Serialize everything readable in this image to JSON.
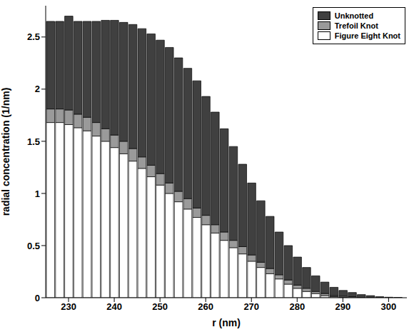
{
  "chart_data": {
    "type": "bar",
    "stacked": true,
    "legend": "upper right",
    "xlabel": "r (nm)",
    "ylabel": "radial concentration (1/nm)",
    "x": [
      226,
      228,
      230,
      232,
      234,
      236,
      238,
      240,
      242,
      244,
      246,
      248,
      250,
      252,
      254,
      256,
      258,
      260,
      262,
      264,
      266,
      268,
      270,
      272,
      274,
      276,
      278,
      280,
      282,
      284,
      286,
      288,
      290,
      292,
      294,
      296,
      298,
      300,
      302
    ],
    "series": [
      {
        "name": "Figure Eight Knot",
        "color": "#ffffff",
        "values": [
          1.68,
          1.68,
          1.66,
          1.63,
          1.6,
          1.55,
          1.5,
          1.44,
          1.38,
          1.31,
          1.24,
          1.16,
          1.08,
          1.0,
          0.92,
          0.85,
          0.77,
          0.7,
          0.62,
          0.55,
          0.48,
          0.42,
          0.35,
          0.29,
          0.23,
          0.18,
          0.13,
          0.09,
          0.06,
          0.04,
          0.02,
          0.01,
          0.005,
          0,
          0,
          0,
          0,
          0,
          0
        ]
      },
      {
        "name": "Trefoil Knot",
        "color": "#9a9a9a",
        "values": [
          0.13,
          0.13,
          0.14,
          0.13,
          0.13,
          0.13,
          0.12,
          0.12,
          0.12,
          0.12,
          0.11,
          0.11,
          0.11,
          0.1,
          0.1,
          0.1,
          0.09,
          0.09,
          0.08,
          0.08,
          0.07,
          0.07,
          0.06,
          0.05,
          0.05,
          0.04,
          0.04,
          0.03,
          0.03,
          0.02,
          0.02,
          0.01,
          0.01,
          0.01,
          0,
          0,
          0,
          0,
          0
        ]
      },
      {
        "name": "Unknotted",
        "color": "#404040",
        "values": [
          0.84,
          0.84,
          0.9,
          0.89,
          0.92,
          0.97,
          1.04,
          1.1,
          1.14,
          1.19,
          1.23,
          1.26,
          1.28,
          1.3,
          1.28,
          1.25,
          1.22,
          1.14,
          1.08,
          0.99,
          0.9,
          0.79,
          0.69,
          0.59,
          0.5,
          0.41,
          0.33,
          0.27,
          0.2,
          0.15,
          0.11,
          0.08,
          0.055,
          0.04,
          0.03,
          0.02,
          0.01,
          0.005,
          0.003
        ]
      }
    ],
    "xlim": [
      225,
      304
    ],
    "xticks": [
      230,
      240,
      250,
      260,
      270,
      280,
      290,
      300
    ],
    "ylim": [
      0,
      2.8
    ],
    "yticks": [
      0,
      0.5,
      1,
      1.5,
      2,
      2.5
    ]
  }
}
